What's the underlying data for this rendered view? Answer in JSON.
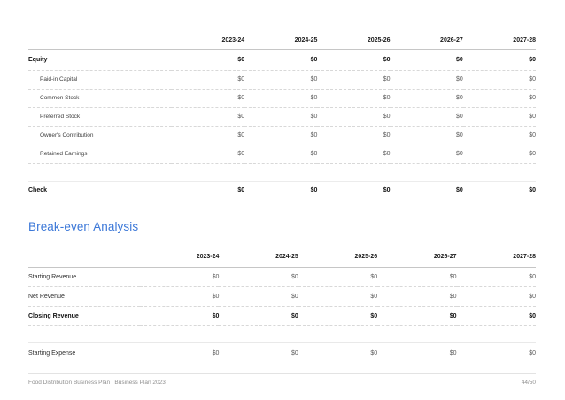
{
  "document": {
    "heading_breakeven": "Break-even Analysis",
    "footer": {
      "left": "Food Distribution Business Plan | Business Plan 2023",
      "right": "44/50"
    }
  },
  "colors": {
    "heading_blue": "#3c78d8",
    "text_primary": "#111111",
    "text_secondary": "#3f3f3f",
    "value_gray": "#5a5a5a",
    "footer_gray": "#8f8f8f"
  },
  "equity_table": {
    "columns": [
      "2023-24",
      "2024-25",
      "2025-26",
      "2026-27",
      "2027-28"
    ],
    "rows": [
      {
        "label": "Equity",
        "bold": true,
        "values": [
          "$0",
          "$0",
          "$0",
          "$0",
          "$0"
        ]
      },
      {
        "label": "Paid-in Capital",
        "bold": false,
        "values": [
          "$0",
          "$0",
          "$0",
          "$0",
          "$0"
        ]
      },
      {
        "label": "Common Stock",
        "bold": false,
        "values": [
          "$0",
          "$0",
          "$0",
          "$0",
          "$0"
        ]
      },
      {
        "label": "Preferred Stock",
        "bold": false,
        "values": [
          "$0",
          "$0",
          "$0",
          "$0",
          "$0"
        ]
      },
      {
        "label": "Owner's Contribution",
        "bold": false,
        "values": [
          "$0",
          "$0",
          "$0",
          "$0",
          "$0"
        ]
      },
      {
        "label": "Retained Earnings",
        "bold": false,
        "values": [
          "$0",
          "$0",
          "$0",
          "$0",
          "$0"
        ]
      }
    ],
    "check_row": {
      "label": "Check",
      "values": [
        "$0",
        "$0",
        "$0",
        "$0",
        "$0"
      ]
    }
  },
  "breakeven_table": {
    "columns": [
      "2023-24",
      "2024-25",
      "2025-26",
      "2026-27",
      "2027-28"
    ],
    "rows": [
      {
        "label": "Starting Revenue",
        "bold": false,
        "values": [
          "$0",
          "$0",
          "$0",
          "$0",
          "$0"
        ]
      },
      {
        "label": "Net Revenue",
        "bold": false,
        "values": [
          "$0",
          "$0",
          "$0",
          "$0",
          "$0"
        ]
      },
      {
        "label": "Closing Revenue",
        "bold": true,
        "values": [
          "$0",
          "$0",
          "$0",
          "$0",
          "$0"
        ]
      }
    ],
    "expense_row": {
      "label": "Starting Expense",
      "values": [
        "$0",
        "$0",
        "$0",
        "$0",
        "$0"
      ]
    }
  }
}
